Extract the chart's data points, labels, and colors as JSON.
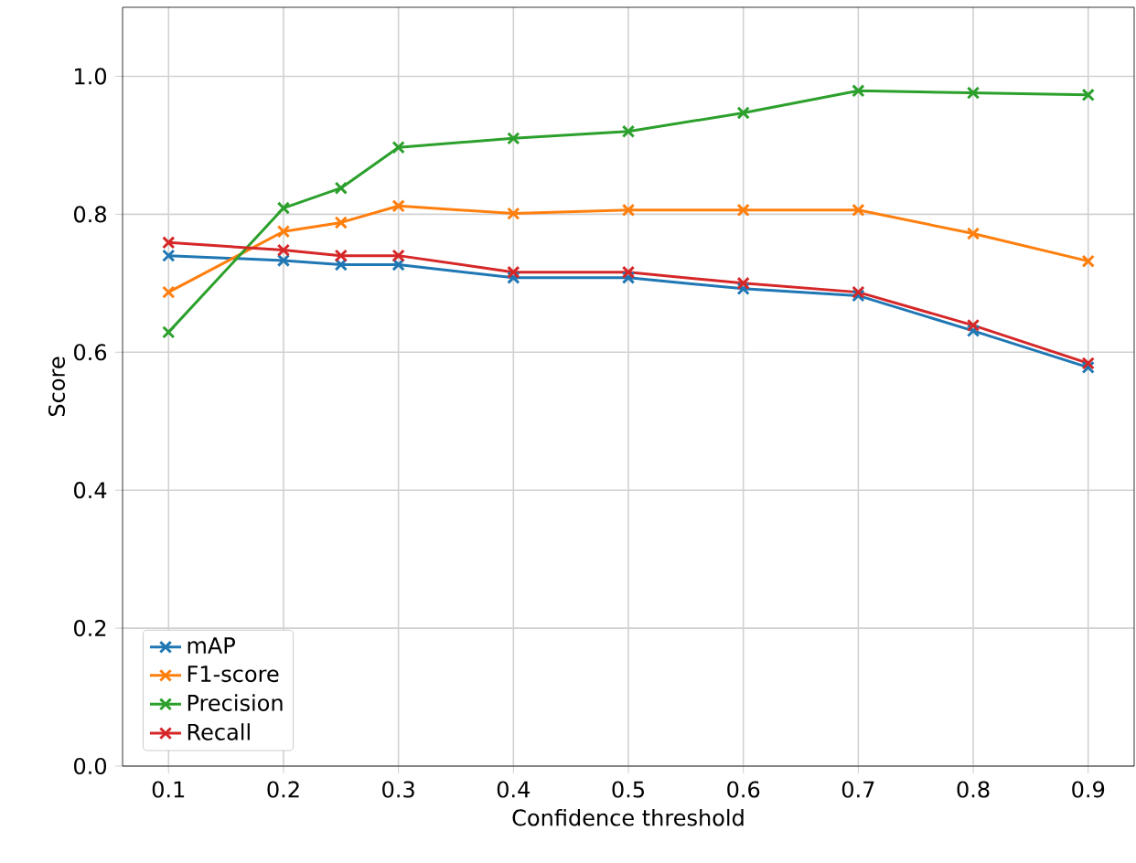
{
  "chart_data": {
    "type": "line",
    "xlabel": "Confidence threshold",
    "ylabel": "Score",
    "x": [
      0.1,
      0.2,
      0.25,
      0.3,
      0.4,
      0.5,
      0.6,
      0.7,
      0.8,
      0.9
    ],
    "series": [
      {
        "name": "mAP",
        "color": "#1f77b4",
        "values": [
          0.74,
          0.733,
          0.727,
          0.727,
          0.708,
          0.708,
          0.692,
          0.682,
          0.631,
          0.578
        ]
      },
      {
        "name": "F1-score",
        "color": "#ff7f0e",
        "values": [
          0.687,
          0.775,
          0.788,
          0.812,
          0.801,
          0.806,
          0.806,
          0.806,
          0.772,
          0.732
        ]
      },
      {
        "name": "Precision",
        "color": "#2ca02c",
        "values": [
          0.629,
          0.809,
          0.838,
          0.897,
          0.91,
          0.92,
          0.947,
          0.979,
          0.976,
          0.973
        ]
      },
      {
        "name": "Recall",
        "color": "#d62728",
        "values": [
          0.759,
          0.748,
          0.74,
          0.74,
          0.716,
          0.716,
          0.7,
          0.687,
          0.639,
          0.584
        ]
      }
    ],
    "xlim": [
      0.06,
      0.94
    ],
    "ylim": [
      0,
      1.1
    ],
    "xticks": [
      0.1,
      0.2,
      0.3,
      0.4,
      0.5,
      0.6,
      0.7,
      0.8,
      0.9
    ],
    "yticks": [
      {
        "value": 0,
        "label": "0.0"
      },
      0.2,
      0.4,
      0.6,
      0.8,
      {
        "value": 1,
        "label": "1.0"
      }
    ],
    "grid": true,
    "legend": "bottom left",
    "marker": "cross",
    "line_style": "solid"
  }
}
